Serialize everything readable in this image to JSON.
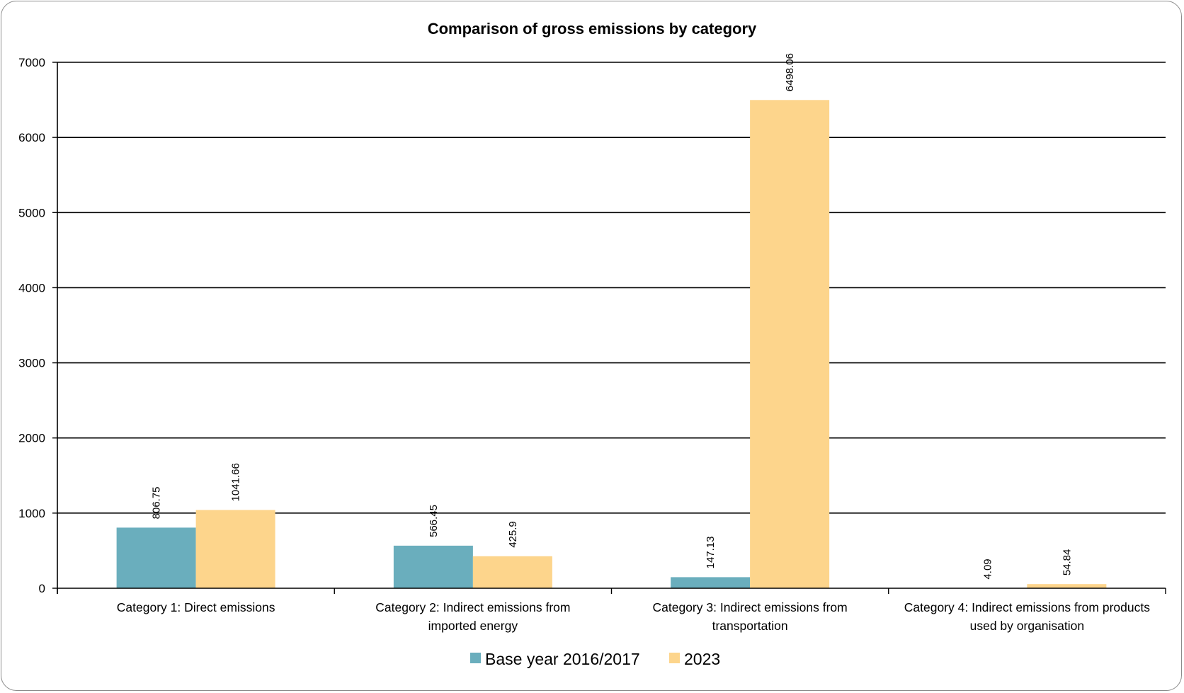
{
  "chart_data": {
    "type": "bar",
    "title": "Comparison of gross emissions by category",
    "xlabel": "",
    "ylabel": "",
    "ylim": [
      0,
      7000
    ],
    "yticks": [
      "0",
      "1000",
      "2000",
      "3000",
      "4000",
      "5000",
      "6000",
      "7000"
    ],
    "grid": true,
    "legend_position": "bottom",
    "categories": [
      [
        "Category 1: Direct emissions"
      ],
      [
        "Category 2: Indirect emissions from",
        "imported energy"
      ],
      [
        "Category 3: Indirect emissions from",
        "transportation"
      ],
      [
        "Category 4: Indirect emissions from products",
        "used by organisation"
      ]
    ],
    "series": [
      {
        "name": "Base year 2016/2017",
        "color": "#6aaebd",
        "values": [
          806.75,
          566.45,
          147.13,
          4.09
        ],
        "labels": [
          "806.75",
          "566.45",
          "147.13",
          "4.09"
        ]
      },
      {
        "name": "2023",
        "color": "#fdd58c",
        "values": [
          1041.66,
          425.9,
          6498.06,
          54.84
        ],
        "labels": [
          "1041.66",
          "425.9",
          "6498.06",
          "54.84"
        ]
      }
    ]
  }
}
